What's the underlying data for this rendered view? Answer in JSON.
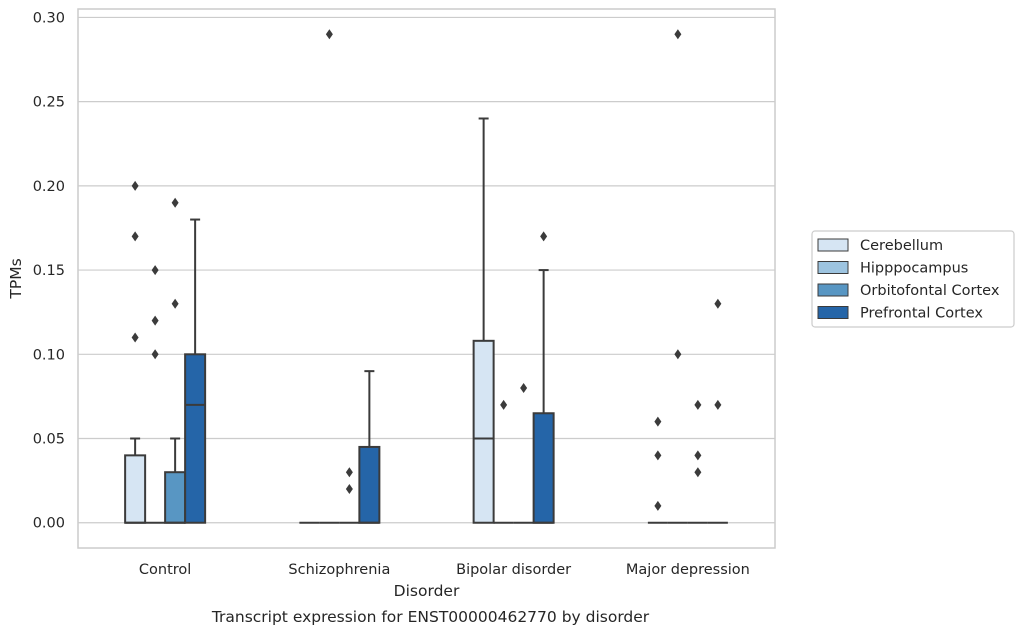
{
  "chart_data": {
    "type": "box",
    "title": "",
    "caption": "Transcript expression for ENST00000462770 by disorder",
    "xlabel": "Disorder",
    "ylabel": "TPMs",
    "ylim": [
      -0.015,
      0.305
    ],
    "yticks": [
      0.0,
      0.05,
      0.1,
      0.15,
      0.2,
      0.25,
      0.3
    ],
    "ytick_labels": [
      "0.00",
      "0.05",
      "0.10",
      "0.15",
      "0.20",
      "0.25",
      "0.30"
    ],
    "grid": "horizontal",
    "legend_position": "right",
    "categories": [
      "Control",
      "Schizophrenia",
      "Bipolar disorder",
      "Major depression"
    ],
    "series": [
      {
        "name": "Cerebellum",
        "color": "#d6e5f3",
        "boxes": [
          {
            "q1": 0.0,
            "median": 0.0,
            "q3": 0.04,
            "whisker_low": 0.0,
            "whisker_high": 0.05,
            "outliers": [
              0.11,
              0.17,
              0.2
            ]
          },
          {
            "q1": 0.0,
            "median": 0.0,
            "q3": 0.0,
            "whisker_low": 0.0,
            "whisker_high": 0.0,
            "outliers": []
          },
          {
            "q1": 0.0,
            "median": 0.05,
            "q3": 0.108,
            "whisker_low": 0.0,
            "whisker_high": 0.24,
            "outliers": []
          },
          {
            "q1": 0.0,
            "median": 0.0,
            "q3": 0.0,
            "whisker_low": 0.0,
            "whisker_high": 0.0,
            "outliers": [
              0.01,
              0.04,
              0.06
            ]
          }
        ]
      },
      {
        "name": "Hipppocampus",
        "color": "#9dc4e0",
        "boxes": [
          {
            "q1": 0.0,
            "median": 0.0,
            "q3": 0.0,
            "whisker_low": 0.0,
            "whisker_high": 0.0,
            "outliers": [
              0.1,
              0.12,
              0.15
            ]
          },
          {
            "q1": 0.0,
            "median": 0.0,
            "q3": 0.0,
            "whisker_low": 0.0,
            "whisker_high": 0.0,
            "outliers": [
              0.29
            ]
          },
          {
            "q1": 0.0,
            "median": 0.0,
            "q3": 0.0,
            "whisker_low": 0.0,
            "whisker_high": 0.0,
            "outliers": [
              0.07
            ]
          },
          {
            "q1": 0.0,
            "median": 0.0,
            "q3": 0.0,
            "whisker_low": 0.0,
            "whisker_high": 0.0,
            "outliers": [
              0.1,
              0.29
            ]
          }
        ]
      },
      {
        "name": "Orbitofontal Cortex",
        "color": "#5896c3",
        "boxes": [
          {
            "q1": 0.0,
            "median": 0.0,
            "q3": 0.03,
            "whisker_low": 0.0,
            "whisker_high": 0.05,
            "outliers": [
              0.13,
              0.19
            ]
          },
          {
            "q1": 0.0,
            "median": 0.0,
            "q3": 0.0,
            "whisker_low": 0.0,
            "whisker_high": 0.0,
            "outliers": [
              0.02,
              0.03
            ]
          },
          {
            "q1": 0.0,
            "median": 0.0,
            "q3": 0.0,
            "whisker_low": 0.0,
            "whisker_high": 0.0,
            "outliers": [
              0.08
            ]
          },
          {
            "q1": 0.0,
            "median": 0.0,
            "q3": 0.0,
            "whisker_low": 0.0,
            "whisker_high": 0.0,
            "outliers": [
              0.03,
              0.04,
              0.07
            ]
          }
        ]
      },
      {
        "name": "Prefrontal Cortex",
        "color": "#2565a8",
        "boxes": [
          {
            "q1": 0.0,
            "median": 0.07,
            "q3": 0.1,
            "whisker_low": 0.0,
            "whisker_high": 0.18,
            "outliers": []
          },
          {
            "q1": 0.0,
            "median": 0.0,
            "q3": 0.045,
            "whisker_low": 0.0,
            "whisker_high": 0.09,
            "outliers": []
          },
          {
            "q1": 0.0,
            "median": 0.0,
            "q3": 0.065,
            "whisker_low": 0.0,
            "whisker_high": 0.15,
            "outliers": [
              0.17
            ]
          },
          {
            "q1": 0.0,
            "median": 0.0,
            "q3": 0.0,
            "whisker_low": 0.0,
            "whisker_high": 0.0,
            "outliers": [
              0.07,
              0.13
            ]
          }
        ]
      }
    ]
  }
}
